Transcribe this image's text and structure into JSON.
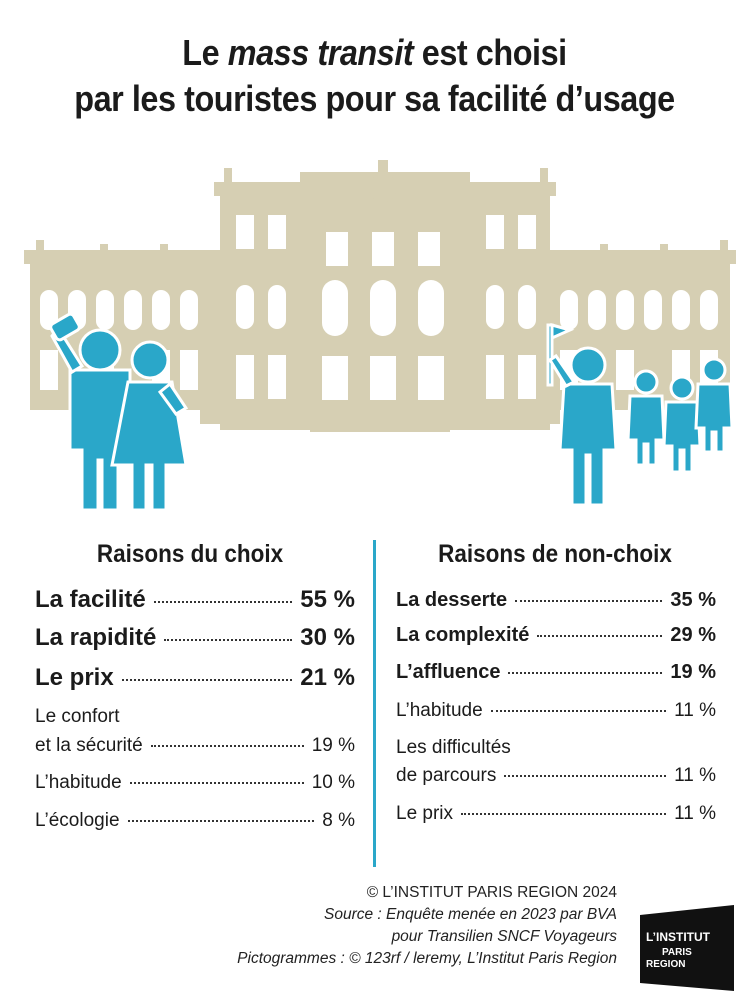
{
  "title": {
    "line1_prefix": "Le ",
    "line1_emph": "mass transit",
    "line1_suffix": " est choisi",
    "line2": "par les touristes pour sa facilité d’usage"
  },
  "colors": {
    "accent": "#2aa7c9",
    "building": "#d6cfb3",
    "text": "#1b1b1b"
  },
  "left": {
    "heading": "Raisons du choix",
    "items": [
      {
        "label": "La facilité",
        "value": "55 %"
      },
      {
        "label": "La rapidité",
        "value": "30 %"
      },
      {
        "label": "Le prix",
        "value": "21 %"
      },
      {
        "label_line1": "Le confort",
        "label": "et la sécurité",
        "value": "19 %"
      },
      {
        "label": "L’habitude",
        "value": "10 %"
      },
      {
        "label": "L’écologie",
        "value": "8 %"
      }
    ]
  },
  "right": {
    "heading": "Raisons de non-choix",
    "items": [
      {
        "label": "La desserte",
        "value": "35 %"
      },
      {
        "label": "La complexité",
        "value": "29 %"
      },
      {
        "label": "L’affluence",
        "value": "19 %"
      },
      {
        "label": "L’habitude",
        "value": "11 %"
      },
      {
        "label_line1": "Les difficultés",
        "label": "de parcours",
        "value": "11 %"
      },
      {
        "label": "Le prix",
        "value": "11 %"
      }
    ]
  },
  "credits": {
    "copyright": "© L’INSTITUT PARIS REGION 2024",
    "source1": "Source : Enquête menée en 2023 par BVA",
    "source2": "pour Transilien SNCF Voyageurs",
    "pictos": "Pictogrammes : © 123rf / leremy, L’Institut Paris Region"
  },
  "logo": {
    "line1": "L’INSTITUT",
    "line2": "PARIS",
    "line3": "REGION"
  }
}
